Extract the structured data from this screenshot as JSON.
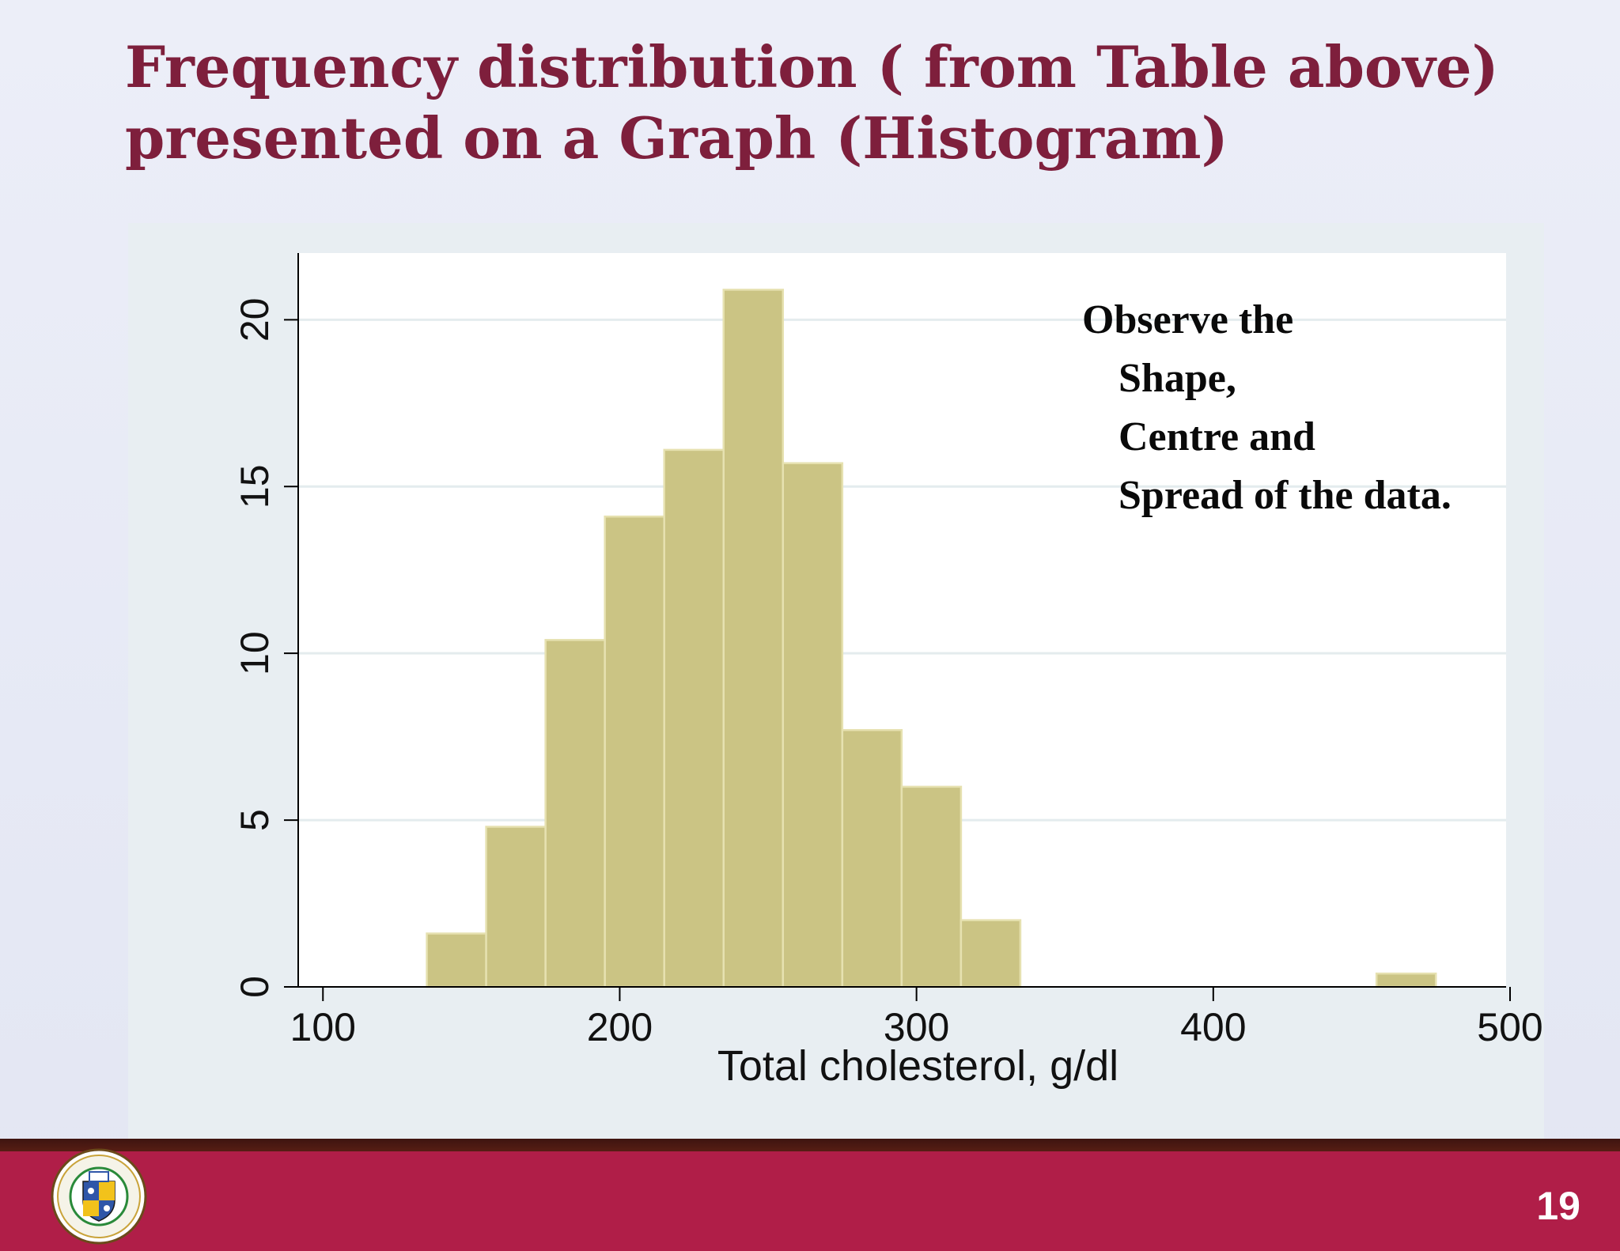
{
  "slide": {
    "title_line1": "Frequency distribution ( from Table above)",
    "title_line2": "presented on a Graph (Histogram)",
    "page_number": "19"
  },
  "annotation": {
    "line1": "Observe the",
    "line2": "Shape,",
    "line3": "Centre and",
    "line4": "Spread of  the data."
  },
  "colors": {
    "title": "#7e1f3c",
    "bar_fill": "#cbc484",
    "bar_stroke": "#e6e1b0",
    "footer": "#b01e48",
    "footer_band": "#4a1812"
  },
  "chart_data": {
    "type": "bar",
    "xlabel": "Total cholesterol, g/dl",
    "ylabel": "",
    "xlim": [
      93,
      500
    ],
    "ylim": [
      0,
      22
    ],
    "x_ticks": [
      100,
      200,
      300,
      400,
      500
    ],
    "y_ticks": [
      0,
      5,
      10,
      15,
      20
    ],
    "grid": true,
    "bins": [
      {
        "start": 135,
        "end": 155,
        "value": 1.6
      },
      {
        "start": 155,
        "end": 175,
        "value": 4.8
      },
      {
        "start": 175,
        "end": 195,
        "value": 10.4
      },
      {
        "start": 195,
        "end": 215,
        "value": 14.1
      },
      {
        "start": 215,
        "end": 235,
        "value": 16.1
      },
      {
        "start": 235,
        "end": 255,
        "value": 20.9
      },
      {
        "start": 255,
        "end": 275,
        "value": 15.7
      },
      {
        "start": 275,
        "end": 295,
        "value": 7.7
      },
      {
        "start": 295,
        "end": 315,
        "value": 6.0
      },
      {
        "start": 315,
        "end": 335,
        "value": 2.0
      },
      {
        "start": 455,
        "end": 475,
        "value": 0.4
      }
    ]
  }
}
